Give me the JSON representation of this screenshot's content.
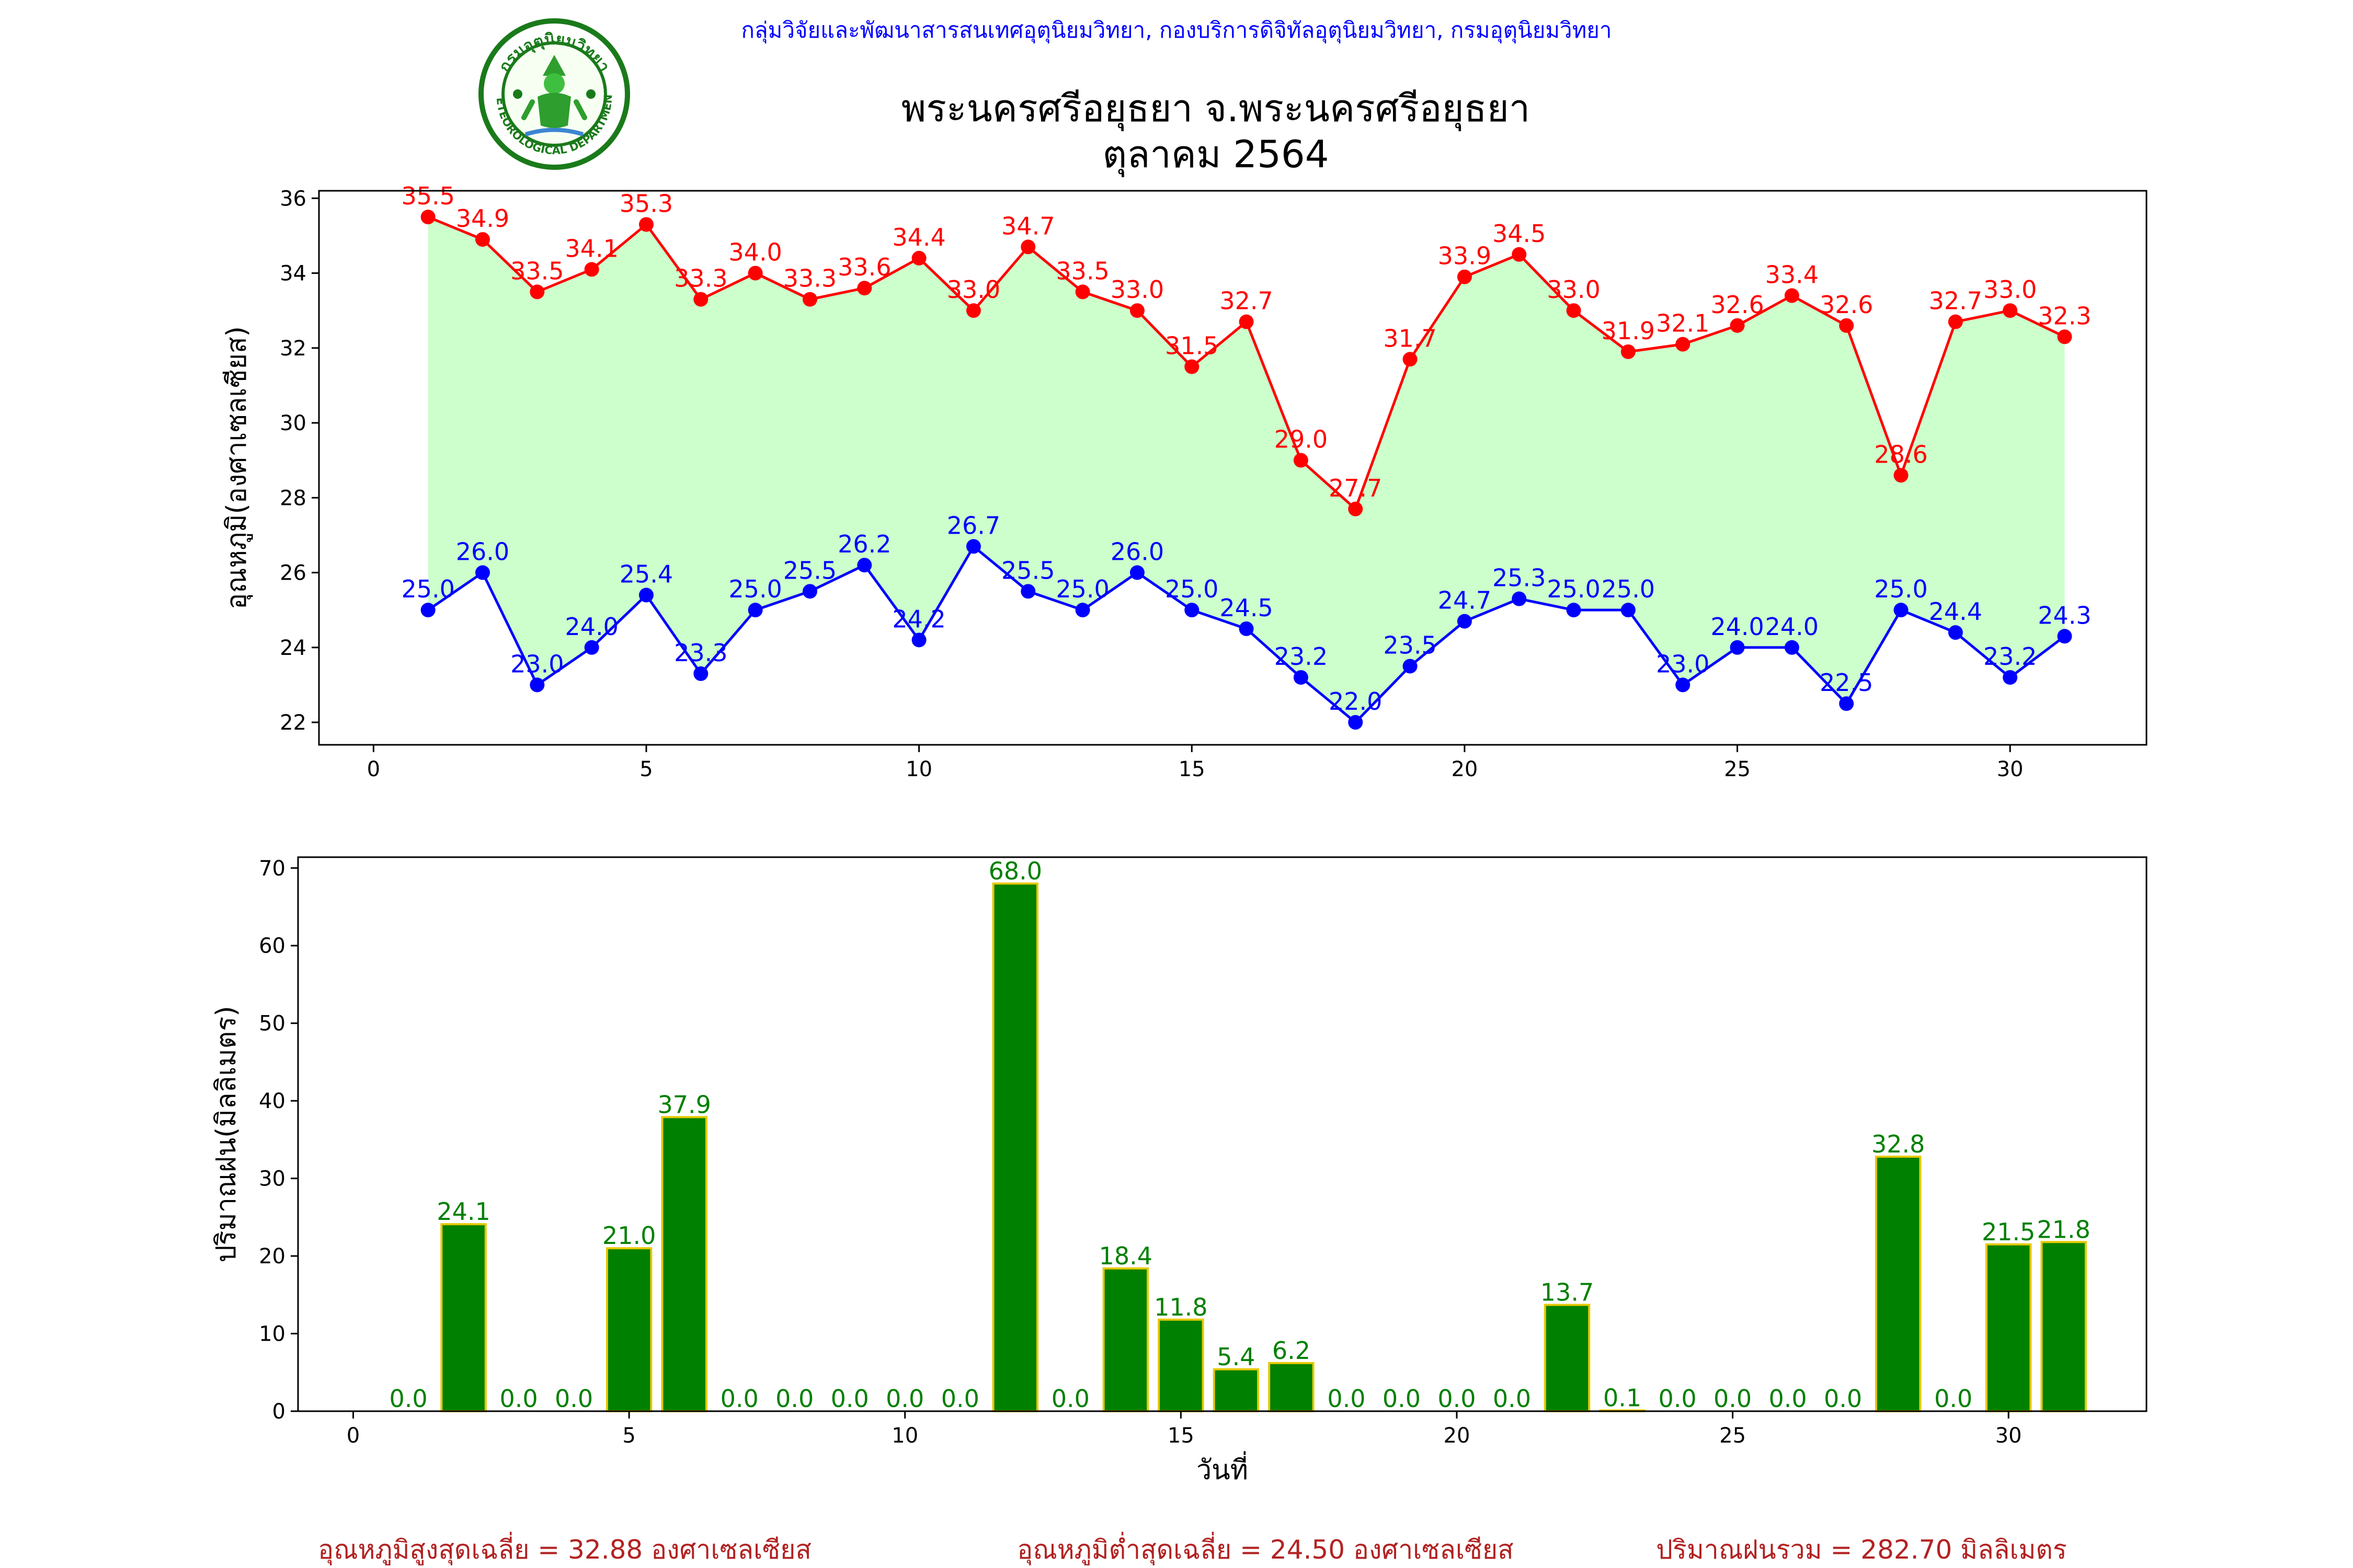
{
  "header": {
    "org_line": "กลุ่มวิจัยและพัฒนาสารสนเทศอุตุนิยมวิทยา, กองบริการดิจิทัลอุตุนิยมวิทยา, กรมอุตุนิยมวิทยา",
    "title_line1": "พระนครศรีอยุธยา จ.พระนครศรีอยุธยา",
    "title_line2": "ตุลาคม 2564",
    "logo_text_top": "กรมอุตุนิยมวิทยา",
    "logo_text_bottom": "METEOROLOGICAL DEPARTMENT"
  },
  "colors": {
    "max_temp": "#ff0000",
    "min_temp": "#0000ff",
    "temp_fill": "#ccffcc",
    "rain_bar": "#008000",
    "rain_edge": "#e6c800",
    "rain_label": "#008000",
    "summary": "#b22222",
    "org_line": "#0000ff"
  },
  "chart_data": [
    {
      "type": "line",
      "ylabel": "อุณหภูมิ(องศาเซลเซียส)",
      "xlim": [
        -1,
        32.5
      ],
      "ylim": [
        21.4,
        36.2
      ],
      "xticks": [
        0,
        5,
        10,
        15,
        20,
        25,
        30
      ],
      "yticks": [
        22,
        24,
        26,
        28,
        30,
        32,
        34,
        36
      ],
      "x": [
        1,
        2,
        3,
        4,
        5,
        6,
        7,
        8,
        9,
        10,
        11,
        12,
        13,
        14,
        15,
        16,
        17,
        18,
        19,
        20,
        21,
        22,
        23,
        24,
        25,
        26,
        27,
        28,
        29,
        30,
        31
      ],
      "series": [
        {
          "values": [
            35.5,
            34.9,
            33.5,
            34.1,
            35.3,
            33.3,
            34.0,
            33.3,
            33.6,
            34.4,
            33.0,
            34.7,
            33.5,
            33.0,
            31.5,
            32.7,
            29.0,
            27.7,
            31.7,
            33.9,
            34.5,
            33.0,
            31.9,
            32.1,
            32.6,
            33.4,
            32.6,
            28.6,
            32.7,
            33.0,
            32.3
          ],
          "labels": [
            "35.5",
            "34.9",
            "33.5",
            "34.1",
            "35.3",
            "33.3",
            "34.0",
            "33.3",
            "33.6",
            "34.4",
            "33.0",
            "34.7",
            "33.5",
            "33.0",
            "31.5",
            "32.7",
            "29.0",
            "27.7",
            "31.7",
            "33.9",
            "34.5",
            "33.0",
            "31.9",
            "32.1",
            "32.6",
            "33.4",
            "32.6",
            "28.6",
            "32.7",
            "33.0",
            "32.3"
          ]
        },
        {
          "values": [
            25.0,
            26.0,
            23.0,
            24.0,
            25.4,
            23.3,
            25.0,
            25.5,
            26.2,
            24.2,
            26.7,
            25.5,
            25.0,
            26.0,
            25.0,
            24.5,
            23.2,
            22.0,
            23.5,
            24.7,
            25.3,
            25.0,
            25.0,
            23.0,
            24.0,
            24.0,
            22.5,
            25.0,
            24.4,
            23.2,
            24.3
          ],
          "labels": [
            "25.0",
            "26.0",
            "23.0",
            "24.0",
            "25.4",
            "23.3",
            "25.0",
            "25.5",
            "26.2",
            "24.2",
            "26.7",
            "25.5",
            "25.0",
            "26.0",
            "25.0",
            "24.5",
            "23.2",
            "22.0",
            "23.5",
            "24.7",
            "25.3",
            "25.0",
            "25.0",
            "23.0",
            "24.0",
            "24.0",
            "22.5",
            "25.0",
            "24.4",
            "23.2",
            "24.3"
          ]
        }
      ]
    },
    {
      "type": "bar",
      "xlabel": "วันที่",
      "ylabel": "ปริมาณฝน(มิลลิเมตร)",
      "xlim": [
        -1,
        32.5
      ],
      "ylim": [
        0,
        71.4
      ],
      "xticks": [
        0,
        5,
        10,
        15,
        20,
        25,
        30
      ],
      "yticks": [
        0,
        10,
        20,
        30,
        40,
        50,
        60,
        70
      ],
      "x": [
        1,
        2,
        3,
        4,
        5,
        6,
        7,
        8,
        9,
        10,
        11,
        12,
        13,
        14,
        15,
        16,
        17,
        18,
        19,
        20,
        21,
        22,
        23,
        24,
        25,
        26,
        27,
        28,
        29,
        30,
        31
      ],
      "values": [
        0.0,
        24.1,
        0.0,
        0.0,
        21.0,
        37.9,
        0.0,
        0.0,
        0.0,
        0.0,
        0.0,
        68.0,
        0.0,
        18.4,
        11.8,
        5.4,
        6.2,
        0.0,
        0.0,
        0.0,
        0.0,
        13.7,
        0.1,
        0.0,
        0.0,
        0.0,
        0.0,
        32.8,
        0.0,
        21.5,
        21.8
      ],
      "labels": [
        "0.0",
        "24.1",
        "0.0",
        "0.0",
        "21.0",
        "37.9",
        "0.0",
        "0.0",
        "0.0",
        "0.0",
        "0.0",
        "68.0",
        "0.0",
        "18.4",
        "11.8",
        "5.4",
        "6.2",
        "0.0",
        "0.0",
        "0.0",
        "0.0",
        "13.7",
        "0.1",
        "0.0",
        "0.0",
        "0.0",
        "0.0",
        "32.8",
        "0.0",
        "21.5",
        "21.8"
      ]
    }
  ],
  "summary": {
    "avg_max": "อุณหภูมิสูงสุดเฉลี่ย = 32.88 องศาเซลเซียส",
    "avg_min": "อุณหภูมิต่ำสุดเฉลี่ย = 24.50 องศาเซลเซียส",
    "total_rain": "ปริมาณฝนรวม = 282.70 มิลลิเมตร"
  }
}
